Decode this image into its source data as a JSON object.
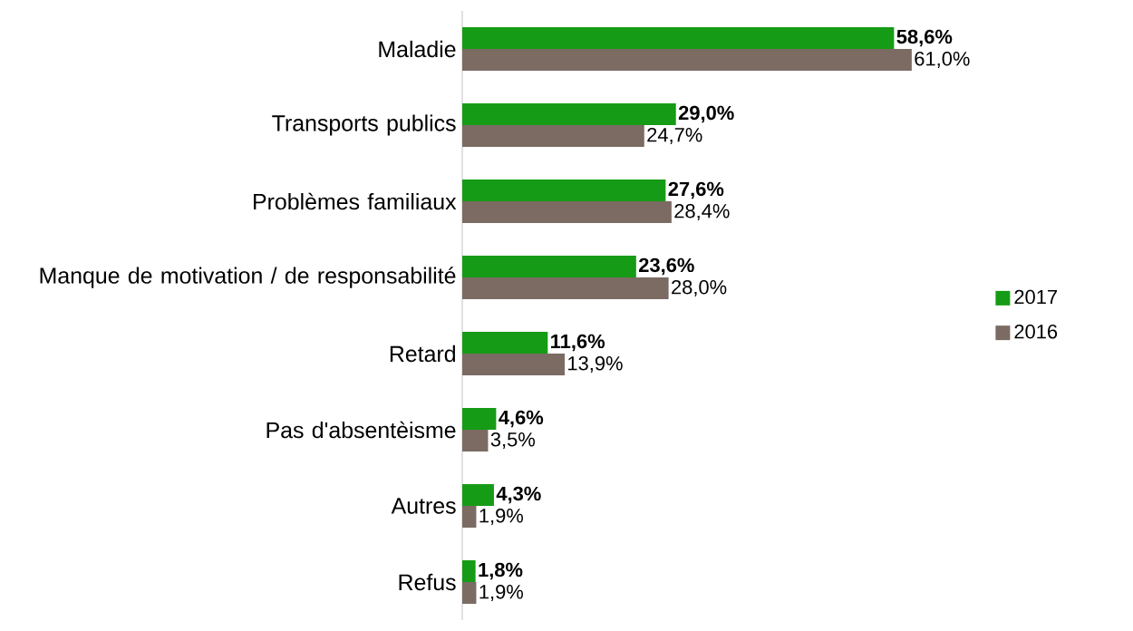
{
  "chart_data": {
    "type": "bar",
    "orientation": "horizontal",
    "categories": [
      "Maladie",
      "Transports publics",
      "Problèmes familiaux",
      "Manque de motivation / de responsabilité",
      "Retard",
      "Pas d'absentèisme",
      "Autres",
      "Refus"
    ],
    "series": [
      {
        "name": "2017",
        "color": "#169b16",
        "values": [
          58.6,
          29.0,
          27.6,
          23.6,
          11.6,
          4.6,
          4.3,
          1.8
        ],
        "value_labels": [
          "58,6%",
          "29,0%",
          "27,6%",
          "23,6%",
          "11,6%",
          "4,6%",
          "4,3%",
          "1,8%"
        ]
      },
      {
        "name": "2016",
        "color": "#7b6b62",
        "values": [
          61.0,
          24.7,
          28.4,
          28.0,
          13.9,
          3.5,
          1.9,
          1.9
        ],
        "value_labels": [
          "61,0%",
          "24,7%",
          "28,4%",
          "28,0%",
          "13,9%",
          "3,5%",
          "1,9%",
          "1,9%"
        ]
      }
    ],
    "legend": "right"
  }
}
